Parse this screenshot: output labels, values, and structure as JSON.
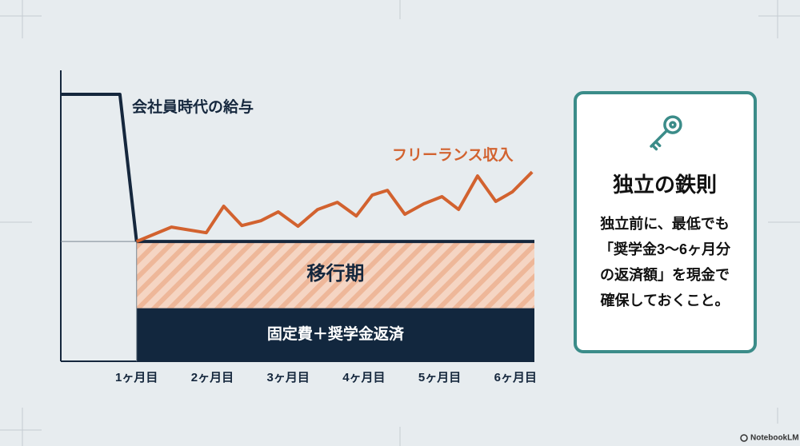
{
  "chart_data": {
    "type": "line",
    "xlim": [
      0,
      6.25
    ],
    "ylim": [
      -70,
      100
    ],
    "xticks": [
      {
        "value": 1,
        "label": "1ヶ月目"
      },
      {
        "value": 2,
        "label": "2ヶ月目"
      },
      {
        "value": 3,
        "label": "3ヶ月目"
      },
      {
        "value": 4,
        "label": "4ヶ月目"
      },
      {
        "value": 5,
        "label": "5ヶ月目"
      },
      {
        "value": 6,
        "label": "6ヶ月目"
      }
    ],
    "series": [
      {
        "name": "会社員時代の給与",
        "color": "#15273d",
        "x": [
          0,
          0.78,
          1
        ],
        "values": [
          86,
          86,
          0
        ]
      },
      {
        "name": "フリーランス収入",
        "color": "#d2622f",
        "x": [
          1,
          1.46,
          1.92,
          2.15,
          2.39,
          2.64,
          2.87,
          3.13,
          3.39,
          3.65,
          3.9,
          4.11,
          4.31,
          4.54,
          4.79,
          5.03,
          5.25,
          5.5,
          5.74,
          5.96,
          6.22
        ],
        "values": [
          0,
          8.4,
          5.1,
          20.6,
          9.3,
          12.1,
          17.3,
          8.9,
          18.7,
          22.9,
          14.9,
          27.1,
          29.9,
          15.9,
          22,
          26.2,
          18.7,
          38.3,
          23.4,
          29,
          40.6
        ]
      }
    ],
    "baseline": {
      "x": [
        1,
        6.25
      ],
      "value": 0,
      "color": "#15273d"
    },
    "regions": [
      {
        "label": "移行期",
        "x": [
          1,
          6.25
        ],
        "y": [
          -39,
          0
        ],
        "color": "#f2c7ae"
      },
      {
        "label": "固定費＋奨学金返済",
        "x": [
          1,
          6.25
        ],
        "y": [
          -70,
          -39
        ],
        "color": "#12273e"
      }
    ]
  },
  "card": {
    "title": "独立の鉄則",
    "body": [
      "独立前に、最低でも",
      "「奨学金3〜6ヶ月分",
      "の返済額」を現金で",
      "確保しておくこと。"
    ]
  },
  "footer": "NotebookLM"
}
